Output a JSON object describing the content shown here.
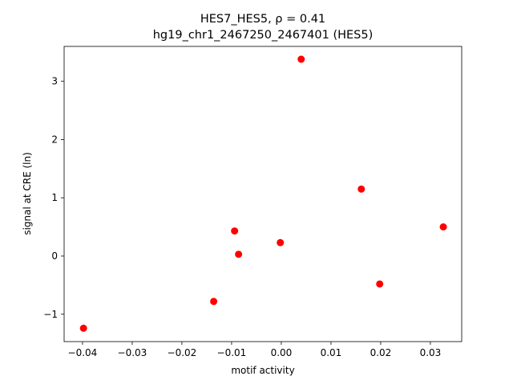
{
  "chart_data": {
    "type": "scatter",
    "title": "HES7_HES5, ρ = 0.41",
    "subtitle": "hg19_chr1_2467250_2467401 (HES5)",
    "x_label": "motif activity",
    "y_label": "signal at CRE (ln)",
    "color": "#ff0000",
    "x": [
      -0.0398,
      -0.0136,
      -0.0094,
      -0.0086,
      -0.0002,
      0.004,
      0.0161,
      0.0198,
      0.0326
    ],
    "values": [
      -1.24,
      -0.78,
      0.43,
      0.03,
      0.23,
      3.38,
      1.15,
      -0.48,
      0.5
    ],
    "xlim": [
      -0.0437,
      0.0363
    ],
    "ylim": [
      -1.47,
      3.6
    ],
    "xticks": [
      {
        "value": -0.04,
        "label": "−0.04"
      },
      {
        "value": -0.03,
        "label": "−0.03"
      },
      {
        "value": -0.02,
        "label": "−0.02"
      },
      {
        "value": -0.01,
        "label": "−0.01"
      },
      {
        "value": 0,
        "label": "0.00"
      },
      0.01,
      0.02,
      0.03
    ],
    "yticks": [
      {
        "value": -1,
        "label": "−1"
      },
      0,
      1,
      2,
      3
    ],
    "grid": false
  }
}
